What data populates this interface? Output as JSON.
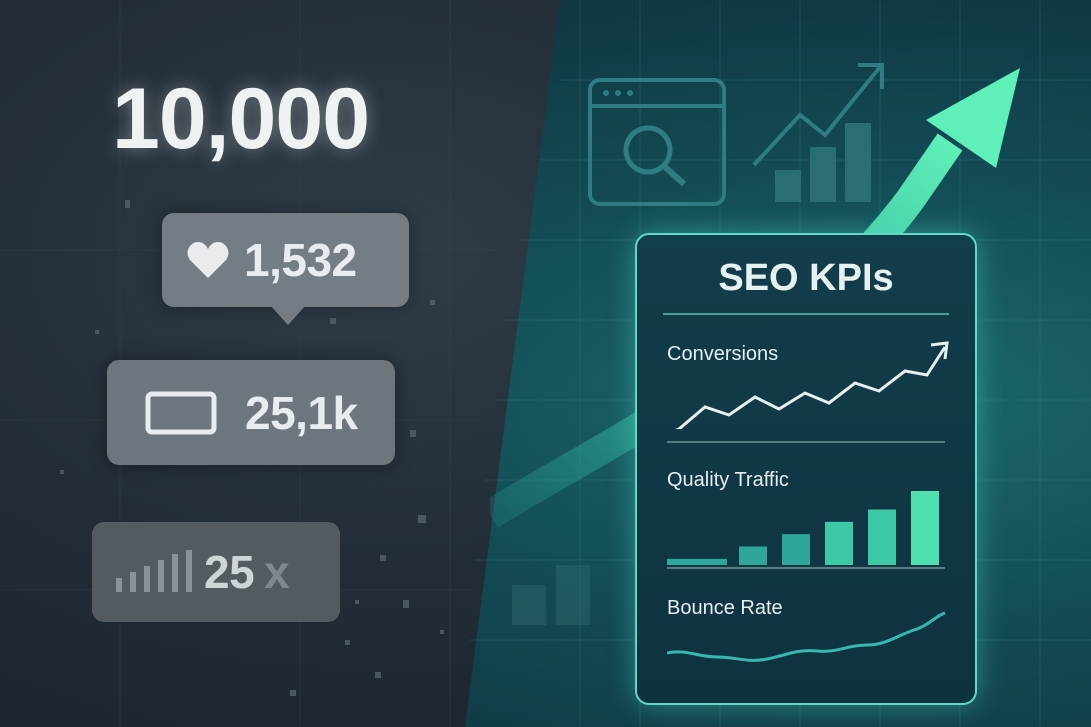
{
  "hero": {
    "big_number": "10,000"
  },
  "vanity_metrics": [
    {
      "icon": "heart-icon",
      "value": "1,532"
    },
    {
      "icon": "screen-icon",
      "value": "25,1k"
    },
    {
      "icon": "bars-icon",
      "value": "25",
      "suffix": "x"
    }
  ],
  "kpi_card": {
    "title": "SEO KPIs",
    "kpis": [
      {
        "label": "Conversions",
        "type": "line-with-arrow"
      },
      {
        "label": "Quality Traffic",
        "type": "bar",
        "values": [
          1,
          3,
          5,
          7,
          9,
          12
        ]
      },
      {
        "label": "Bounce Rate",
        "type": "wave"
      }
    ]
  },
  "colors": {
    "accent": "#5fd9c8",
    "arrow": "#4be3b3",
    "chip": "#737d83",
    "card_bg": "#0f3240"
  },
  "icons": [
    "browser-search-icon",
    "growth-chart-icon",
    "trend-arrow-icon"
  ]
}
